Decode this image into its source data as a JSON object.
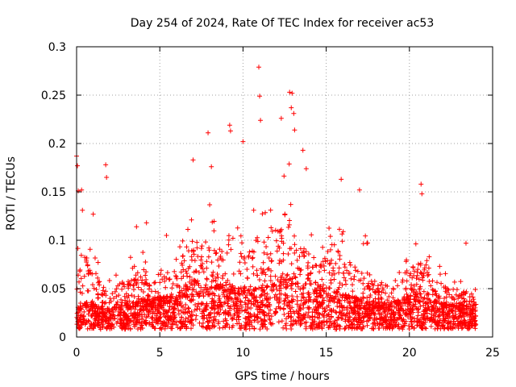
{
  "chart_data": {
    "type": "scatter",
    "title": "Day 254 of 2024, Rate Of TEC Index for receiver ac53",
    "xlabel": "GPS time / hours",
    "ylabel": "ROTI / TECUs",
    "xlim": [
      0,
      25
    ],
    "ylim": [
      0,
      0.3
    ],
    "xticks": [
      0,
      5,
      10,
      15,
      20,
      25
    ],
    "yticks": [
      0,
      0.05,
      0.1,
      0.15,
      0.2,
      0.25,
      0.3
    ],
    "grid": true,
    "marker": "+",
    "series": [
      {
        "name": "ROTI",
        "color": "#ff0000",
        "notable_points": [
          {
            "x": 0.0,
            "y": 0.187
          },
          {
            "x": 0.05,
            "y": 0.177
          },
          {
            "x": 0.1,
            "y": 0.151
          },
          {
            "x": 0.3,
            "y": 0.152
          },
          {
            "x": 0.35,
            "y": 0.131
          },
          {
            "x": 1.0,
            "y": 0.127
          },
          {
            "x": 1.75,
            "y": 0.178
          },
          {
            "x": 1.8,
            "y": 0.165
          },
          {
            "x": 3.6,
            "y": 0.114
          },
          {
            "x": 4.2,
            "y": 0.118
          },
          {
            "x": 5.4,
            "y": 0.105
          },
          {
            "x": 7.0,
            "y": 0.183
          },
          {
            "x": 7.9,
            "y": 0.211
          },
          {
            "x": 8.1,
            "y": 0.176
          },
          {
            "x": 9.2,
            "y": 0.219
          },
          {
            "x": 9.25,
            "y": 0.213
          },
          {
            "x": 10.0,
            "y": 0.202
          },
          {
            "x": 10.95,
            "y": 0.279
          },
          {
            "x": 11.0,
            "y": 0.249
          },
          {
            "x": 11.05,
            "y": 0.224
          },
          {
            "x": 12.3,
            "y": 0.226
          },
          {
            "x": 12.8,
            "y": 0.253
          },
          {
            "x": 12.95,
            "y": 0.252
          },
          {
            "x": 12.9,
            "y": 0.237
          },
          {
            "x": 13.05,
            "y": 0.231
          },
          {
            "x": 13.1,
            "y": 0.214
          },
          {
            "x": 13.6,
            "y": 0.193
          },
          {
            "x": 13.8,
            "y": 0.174
          },
          {
            "x": 15.9,
            "y": 0.163
          },
          {
            "x": 17.0,
            "y": 0.152
          },
          {
            "x": 20.7,
            "y": 0.158
          },
          {
            "x": 20.75,
            "y": 0.148
          },
          {
            "x": 23.4,
            "y": 0.097
          }
        ],
        "envelope": [
          {
            "x": 0,
            "typical": 0.025,
            "peak": 0.09
          },
          {
            "x": 0.5,
            "typical": 0.03,
            "peak": 0.12
          },
          {
            "x": 1,
            "typical": 0.03,
            "peak": 0.1
          },
          {
            "x": 1.5,
            "typical": 0.028,
            "peak": 0.07
          },
          {
            "x": 2,
            "typical": 0.025,
            "peak": 0.06
          },
          {
            "x": 2.5,
            "typical": 0.03,
            "peak": 0.07
          },
          {
            "x": 3,
            "typical": 0.03,
            "peak": 0.08
          },
          {
            "x": 3.5,
            "typical": 0.03,
            "peak": 0.09
          },
          {
            "x": 4,
            "typical": 0.035,
            "peak": 0.1
          },
          {
            "x": 4.5,
            "typical": 0.032,
            "peak": 0.08
          },
          {
            "x": 5,
            "typical": 0.035,
            "peak": 0.08
          },
          {
            "x": 5.5,
            "typical": 0.035,
            "peak": 0.09
          },
          {
            "x": 6,
            "typical": 0.035,
            "peak": 0.09
          },
          {
            "x": 6.5,
            "typical": 0.045,
            "peak": 0.12
          },
          {
            "x": 7,
            "typical": 0.05,
            "peak": 0.15
          },
          {
            "x": 7.5,
            "typical": 0.045,
            "peak": 0.13
          },
          {
            "x": 8,
            "typical": 0.045,
            "peak": 0.14
          },
          {
            "x": 8.5,
            "typical": 0.045,
            "peak": 0.12
          },
          {
            "x": 9,
            "typical": 0.045,
            "peak": 0.15
          },
          {
            "x": 9.5,
            "typical": 0.045,
            "peak": 0.13
          },
          {
            "x": 10,
            "typical": 0.045,
            "peak": 0.15
          },
          {
            "x": 10.5,
            "typical": 0.04,
            "peak": 0.12
          },
          {
            "x": 11,
            "typical": 0.045,
            "peak": 0.16
          },
          {
            "x": 11.5,
            "typical": 0.045,
            "peak": 0.13
          },
          {
            "x": 12,
            "typical": 0.05,
            "peak": 0.17
          },
          {
            "x": 12.5,
            "typical": 0.055,
            "peak": 0.19
          },
          {
            "x": 13,
            "typical": 0.05,
            "peak": 0.17
          },
          {
            "x": 13.5,
            "typical": 0.045,
            "peak": 0.13
          },
          {
            "x": 14,
            "typical": 0.04,
            "peak": 0.12
          },
          {
            "x": 14.5,
            "typical": 0.045,
            "peak": 0.13
          },
          {
            "x": 15,
            "typical": 0.045,
            "peak": 0.13
          },
          {
            "x": 15.5,
            "typical": 0.04,
            "peak": 0.12
          },
          {
            "x": 16,
            "typical": 0.04,
            "peak": 0.13
          },
          {
            "x": 16.5,
            "typical": 0.035,
            "peak": 0.1
          },
          {
            "x": 17,
            "typical": 0.035,
            "peak": 0.12
          },
          {
            "x": 17.5,
            "typical": 0.032,
            "peak": 0.1
          },
          {
            "x": 18,
            "typical": 0.03,
            "peak": 0.08
          },
          {
            "x": 18.5,
            "typical": 0.03,
            "peak": 0.07
          },
          {
            "x": 19,
            "typical": 0.03,
            "peak": 0.07
          },
          {
            "x": 19.5,
            "typical": 0.035,
            "peak": 0.09
          },
          {
            "x": 20,
            "typical": 0.035,
            "peak": 0.09
          },
          {
            "x": 20.5,
            "typical": 0.04,
            "peak": 0.11
          },
          {
            "x": 21,
            "typical": 0.035,
            "peak": 0.09
          },
          {
            "x": 21.5,
            "typical": 0.03,
            "peak": 0.08
          },
          {
            "x": 22,
            "typical": 0.03,
            "peak": 0.07
          },
          {
            "x": 22.5,
            "typical": 0.028,
            "peak": 0.06
          },
          {
            "x": 23,
            "typical": 0.028,
            "peak": 0.06
          },
          {
            "x": 23.5,
            "typical": 0.027,
            "peak": 0.06
          },
          {
            "x": 24,
            "typical": 0.025,
            "peak": 0.05
          }
        ]
      }
    ]
  }
}
